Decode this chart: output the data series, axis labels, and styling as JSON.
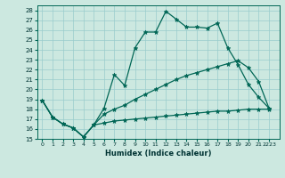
{
  "xlabel": "Humidex (Indice chaleur)",
  "bg_color": "#cce8e0",
  "grid_color": "#99cccc",
  "line_color": "#006655",
  "ylim": [
    15,
    28.5
  ],
  "xlim": [
    -0.5,
    23
  ],
  "curve1_x": [
    0,
    1,
    2,
    3,
    4,
    5,
    6,
    7,
    8,
    9,
    10,
    11,
    12,
    13,
    14,
    15,
    16,
    17,
    18,
    19,
    20,
    21,
    22
  ],
  "curve1_y": [
    18.9,
    17.2,
    16.5,
    16.1,
    15.2,
    16.4,
    18.1,
    21.5,
    20.4,
    24.2,
    25.8,
    25.8,
    27.9,
    27.1,
    26.3,
    26.3,
    26.2,
    26.7,
    24.2,
    22.5,
    20.5,
    19.2,
    18.1
  ],
  "curve2_x": [
    0,
    1,
    2,
    3,
    4,
    5,
    6,
    7,
    8,
    9,
    10,
    11,
    12,
    13,
    14,
    15,
    16,
    17,
    18,
    19,
    20,
    21,
    22
  ],
  "curve2_y": [
    18.9,
    17.2,
    16.5,
    16.1,
    15.2,
    16.4,
    17.5,
    18.0,
    18.4,
    19.0,
    19.5,
    20.0,
    20.5,
    21.0,
    21.4,
    21.7,
    22.0,
    22.3,
    22.6,
    22.9,
    22.2,
    20.8,
    18.1
  ],
  "curve3_x": [
    0,
    1,
    2,
    3,
    4,
    5,
    6,
    7,
    8,
    9,
    10,
    11,
    12,
    13,
    14,
    15,
    16,
    17,
    18,
    19,
    20,
    21,
    22
  ],
  "curve3_y": [
    18.9,
    17.2,
    16.5,
    16.1,
    15.2,
    16.4,
    16.6,
    16.8,
    16.9,
    17.0,
    17.1,
    17.2,
    17.3,
    17.4,
    17.5,
    17.6,
    17.7,
    17.8,
    17.8,
    17.9,
    18.0,
    18.0,
    18.0
  ],
  "yticks": [
    15,
    16,
    17,
    18,
    19,
    20,
    21,
    22,
    23,
    24,
    25,
    26,
    27,
    28
  ],
  "xtick_positions": [
    0,
    1,
    2,
    3,
    4,
    5,
    6,
    7,
    8,
    9,
    10,
    11,
    12,
    13,
    14,
    15,
    16,
    17,
    18,
    19,
    20,
    21,
    22
  ],
  "xtick_labels": [
    "0",
    "1",
    "2",
    "3",
    "4",
    "5",
    "6",
    "7",
    "8",
    "9",
    "10",
    "11",
    "12",
    "13",
    "14",
    "15",
    "16",
    "17",
    "18",
    "19",
    "20",
    "21",
    "2223"
  ]
}
